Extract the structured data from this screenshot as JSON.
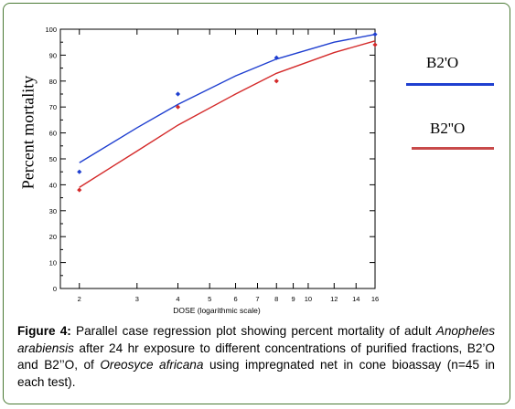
{
  "chart_data": {
    "type": "scatter",
    "title": "",
    "xlabel": "DOSE  (logarithmic scale)",
    "ylabel": "Percent mortality",
    "x_scale": "log",
    "xlim": [
      1.75,
      16
    ],
    "ylim": [
      0,
      100
    ],
    "x_ticks": [
      2,
      3,
      4,
      5,
      6,
      7,
      8,
      9,
      10,
      12,
      14,
      16
    ],
    "y_ticks": [
      0,
      10,
      20,
      30,
      40,
      50,
      60,
      70,
      80,
      90,
      100
    ],
    "grid": false,
    "legend_placement": "right",
    "series": [
      {
        "name": "B2'O",
        "color": "#1f3fd0",
        "points": [
          {
            "x": 2,
            "y": 45
          },
          {
            "x": 4,
            "y": 75
          },
          {
            "x": 8,
            "y": 89
          },
          {
            "x": 16,
            "y": 98
          }
        ],
        "fit_line": [
          {
            "x": 2,
            "y": 48.5
          },
          {
            "x": 3,
            "y": 62
          },
          {
            "x": 4,
            "y": 71
          },
          {
            "x": 6,
            "y": 82
          },
          {
            "x": 8,
            "y": 88.5
          },
          {
            "x": 12,
            "y": 95
          },
          {
            "x": 16,
            "y": 98
          }
        ]
      },
      {
        "name": "B2''O",
        "color": "#d42a2a",
        "points": [
          {
            "x": 2,
            "y": 38
          },
          {
            "x": 4,
            "y": 70
          },
          {
            "x": 8,
            "y": 80
          },
          {
            "x": 16,
            "y": 94
          }
        ],
        "fit_line": [
          {
            "x": 2,
            "y": 39
          },
          {
            "x": 3,
            "y": 53
          },
          {
            "x": 4,
            "y": 63
          },
          {
            "x": 6,
            "y": 75
          },
          {
            "x": 8,
            "y": 83
          },
          {
            "x": 12,
            "y": 91
          },
          {
            "x": 16,
            "y": 95.5
          }
        ]
      }
    ]
  },
  "caption": {
    "figure_label": "Figure 4:",
    "text_1": " Parallel case regression plot showing percent mortality of adult ",
    "species_1": "Anopheles arabiensis",
    "text_2": " after 24 hr exposure to different concentrations of purified fractions, B2’O and B2’’O, of ",
    "species_2": "Oreosyce africana",
    "text_3": " using impregnated net in cone bioassay (n=45 in each test)."
  }
}
